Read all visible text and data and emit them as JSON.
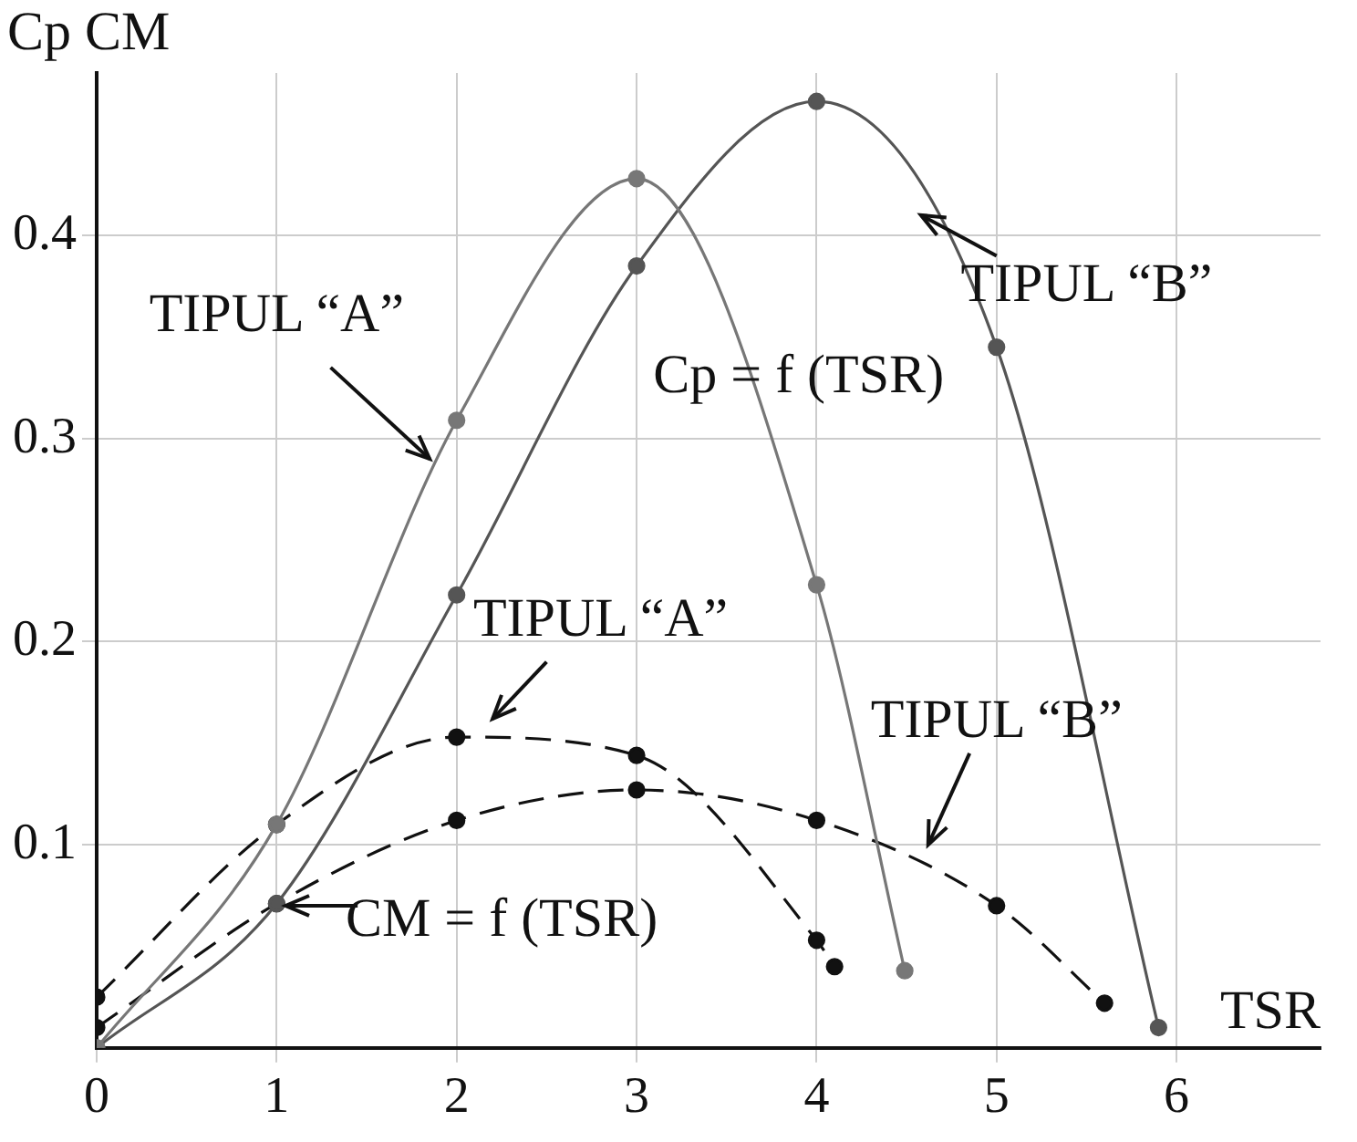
{
  "chart_data": {
    "type": "line",
    "ylabel": "Cp CM",
    "xlabel": "TSR",
    "xlim": [
      0,
      6.8
    ],
    "xticks": [
      0,
      1,
      2,
      3,
      4,
      5,
      6
    ],
    "ylim": [
      0,
      0.48
    ],
    "yticks": [
      0.1,
      0.2,
      0.3,
      0.4
    ],
    "grid": true,
    "legend": false,
    "marker": "circle",
    "series": [
      {
        "color": "#777777",
        "line_style": "solid",
        "x": [
          0,
          1,
          2,
          3,
          4,
          4.49
        ],
        "values": [
          0,
          0.11,
          0.309,
          0.428,
          0.228,
          0.038
        ]
      },
      {
        "color": "#555555",
        "line_style": "solid",
        "x": [
          0,
          1,
          2,
          3,
          4,
          5,
          5.9
        ],
        "values": [
          0,
          0.071,
          0.223,
          0.385,
          0.466,
          0.345,
          0.01
        ]
      },
      {
        "color": "#111111",
        "line_style": "dashed",
        "x": [
          0,
          1,
          2,
          3,
          4,
          4.1
        ],
        "values": [
          0.025,
          0.11,
          0.153,
          0.144,
          0.053,
          0.04
        ]
      },
      {
        "color": "#111111",
        "line_style": "dashed",
        "x": [
          0,
          1,
          2,
          3,
          4,
          5,
          5.6
        ],
        "values": [
          0.01,
          0.071,
          0.112,
          0.127,
          0.112,
          0.07,
          0.022
        ]
      }
    ],
    "annotations": [
      {
        "text": "TIPUL “A”",
        "x": 1.85,
        "y": 0.29
      },
      "Cp = f (TSR)",
      "TIPUL “B”",
      "TIPUL “A”",
      "TIPUL “B”",
      {
        "text": "CM = f (TSR)",
        "x": 1.05,
        "y": 0.07
      }
    ]
  }
}
